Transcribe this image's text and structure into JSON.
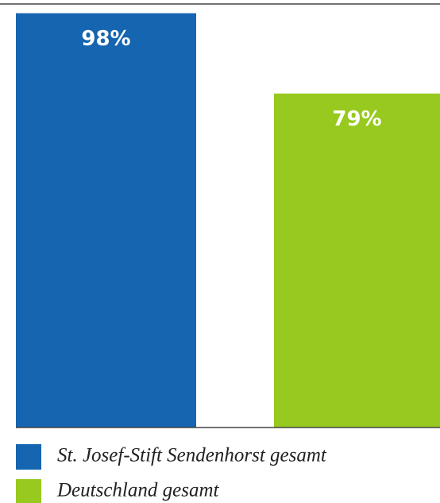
{
  "chart_data": {
    "type": "bar",
    "categories": [
      null
    ],
    "series": [
      {
        "name": "St. Josef-Stift Sendenhorst gesamt",
        "color": "#1565b0",
        "values": [
          98
        ],
        "value_labels": [
          "98%"
        ]
      },
      {
        "name": "Deutschland gesamt",
        "color": "#97c91e",
        "values": [
          79
        ],
        "value_labels": [
          "79%"
        ]
      }
    ],
    "ylim": [
      0,
      100
    ]
  }
}
